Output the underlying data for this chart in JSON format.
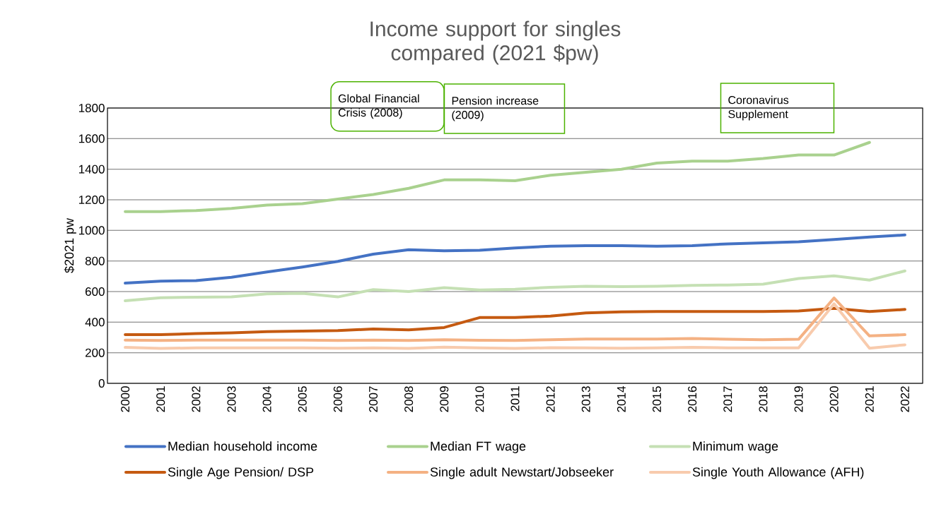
{
  "chart_data": {
    "type": "line",
    "title": "Income support for singles compared (2021 $pw)",
    "ylabel": "$2021 pw",
    "categories": [
      "2000",
      "2001",
      "2002",
      "2003",
      "2004",
      "2005",
      "2006",
      "2007",
      "2008",
      "2009",
      "2010",
      "2011",
      "2012",
      "2013",
      "2014",
      "2015",
      "2016",
      "2017",
      "2018",
      "2019",
      "2020",
      "2021",
      "2022"
    ],
    "series": [
      {
        "name": "Median household income",
        "color": "#4472c4",
        "values": [
          655,
          668,
          672,
          693,
          728,
          760,
          797,
          845,
          873,
          866,
          870,
          885,
          897,
          900,
          900,
          897,
          900,
          912,
          918,
          925,
          940,
          957,
          970
        ]
      },
      {
        "name": "Median FT wage",
        "color": "#a9d18e",
        "values": [
          1123,
          1123,
          1130,
          1143,
          1165,
          1175,
          1205,
          1235,
          1275,
          1330,
          1330,
          1325,
          1360,
          1380,
          1400,
          1440,
          1453,
          1453,
          1470,
          1493,
          1493,
          1575,
          null
        ]
      },
      {
        "name": "Minimum wage",
        "color": "#c5e0b4",
        "values": [
          540,
          560,
          563,
          565,
          585,
          588,
          565,
          613,
          600,
          625,
          610,
          615,
          628,
          635,
          632,
          635,
          640,
          643,
          648,
          685,
          703,
          675,
          735
        ]
      },
      {
        "name": "Single Age Pension/ DSP",
        "color": "#c55a11",
        "values": [
          318,
          318,
          325,
          330,
          338,
          342,
          345,
          355,
          350,
          365,
          430,
          430,
          440,
          460,
          467,
          470,
          470,
          470,
          470,
          473,
          490,
          470,
          483
        ]
      },
      {
        "name": "Single adult Newstart/Jobseeker",
        "color": "#f4b183",
        "values": [
          283,
          280,
          283,
          283,
          283,
          283,
          280,
          283,
          280,
          285,
          282,
          280,
          285,
          290,
          290,
          290,
          293,
          288,
          285,
          288,
          558,
          310,
          318
        ]
      },
      {
        "name": "Single Youth Allowance  (AFH)",
        "color": "#f8cbad",
        "values": [
          235,
          228,
          232,
          232,
          232,
          232,
          230,
          232,
          228,
          237,
          232,
          228,
          233,
          232,
          230,
          232,
          235,
          232,
          232,
          232,
          520,
          230,
          252
        ]
      }
    ],
    "ylim": [
      0,
      1800
    ],
    "yticks": [
      0,
      200,
      400,
      600,
      800,
      1000,
      1200,
      1400,
      1600,
      1800
    ],
    "grid": "y",
    "legend": "bottom",
    "annotations": [
      "Global Financial Crisis (2008)",
      "Pension increase (2009)",
      "Coronavirus Supplement"
    ]
  }
}
